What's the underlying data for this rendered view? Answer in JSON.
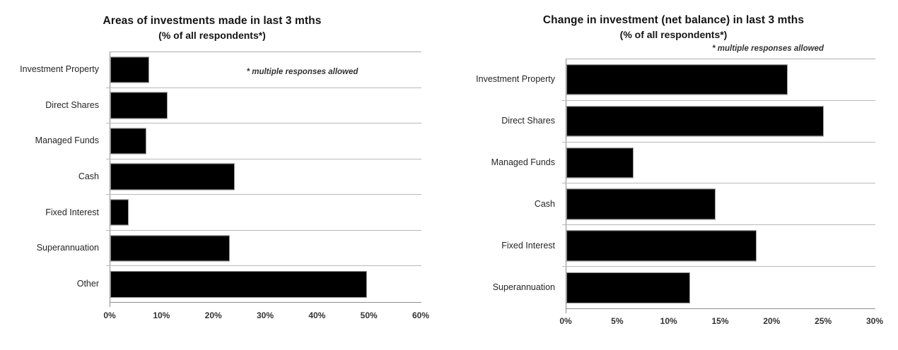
{
  "page": {
    "background": "#ffffff"
  },
  "chart_data": [
    {
      "type": "bar",
      "orientation": "horizontal",
      "title": "Areas of investments made in last 3 mths",
      "subtitle": "(% of all respondents*)",
      "annotation": "* multiple responses allowed",
      "categories": [
        "Investment Property",
        "Direct Shares",
        "Managed Funds",
        "Cash",
        "Fixed Interest",
        "Superannuation",
        "Other"
      ],
      "values": [
        7.5,
        11,
        7,
        24,
        3.5,
        23,
        49.5
      ],
      "unit": "%",
      "xlim": [
        0,
        60
      ],
      "xticks": [
        "0%",
        "10%",
        "20%",
        "30%",
        "40%",
        "50%",
        "60%"
      ],
      "grid": "horizontal-row-separators",
      "legend": "none",
      "bar_color": "#000000"
    },
    {
      "type": "bar",
      "orientation": "horizontal",
      "title": "Change in investment (net balance) in last 3 mths",
      "subtitle": "(% of all respondents*)",
      "annotation": "* multiple responses allowed",
      "categories": [
        "Investment Property",
        "Direct Shares",
        "Managed Funds",
        "Cash",
        "Fixed Interest",
        "Superannuation"
      ],
      "values": [
        21.5,
        25,
        6.5,
        14.5,
        18.5,
        12
      ],
      "unit": "%",
      "xlim": [
        0,
        30
      ],
      "xticks": [
        "0%",
        "5%",
        "10%",
        "15%",
        "20%",
        "25%",
        "30%"
      ],
      "grid": "horizontal-row-separators",
      "legend": "none",
      "bar_color": "#000000"
    }
  ]
}
